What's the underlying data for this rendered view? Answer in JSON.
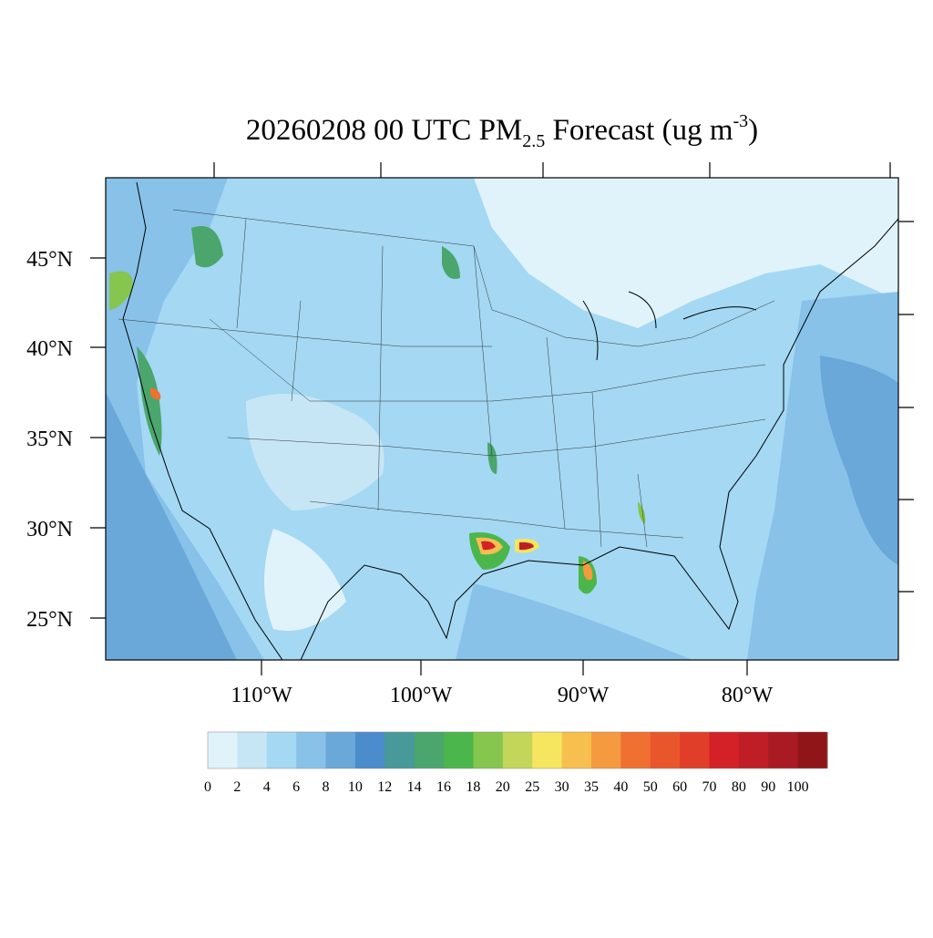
{
  "map": {
    "title": {
      "main": "20260208 00 UTC PM",
      "sub": "2.5",
      "mid": " Forecast (ug m",
      "sup": "-3",
      "end": ")"
    },
    "lat_labels": [
      "45°N",
      "40°N",
      "35°N",
      "30°N",
      "25°N"
    ],
    "lon_labels": [
      "110°W",
      "100°W",
      "90°W",
      "80°W"
    ],
    "colorbar": {
      "labels": [
        "0",
        "2",
        "4",
        "6",
        "8",
        "10",
        "12",
        "14",
        "16",
        "18",
        "20",
        "25",
        "30",
        "35",
        "40",
        "50",
        "60",
        "70",
        "80",
        "90",
        "100"
      ],
      "colors": [
        "#e0f3fb",
        "#c6e6f6",
        "#a4d8f3",
        "#88c2e8",
        "#6aa8da",
        "#4a8ccc",
        "#47999a",
        "#4aa66c",
        "#4bb64b",
        "#86c54e",
        "#c3d65a",
        "#f6e55e",
        "#f7bf4e",
        "#f59a3e",
        "#ef7030",
        "#e9562b",
        "#e03e28",
        "#d42128",
        "#bf1e26",
        "#aa1a22",
        "#901518"
      ]
    }
  }
}
